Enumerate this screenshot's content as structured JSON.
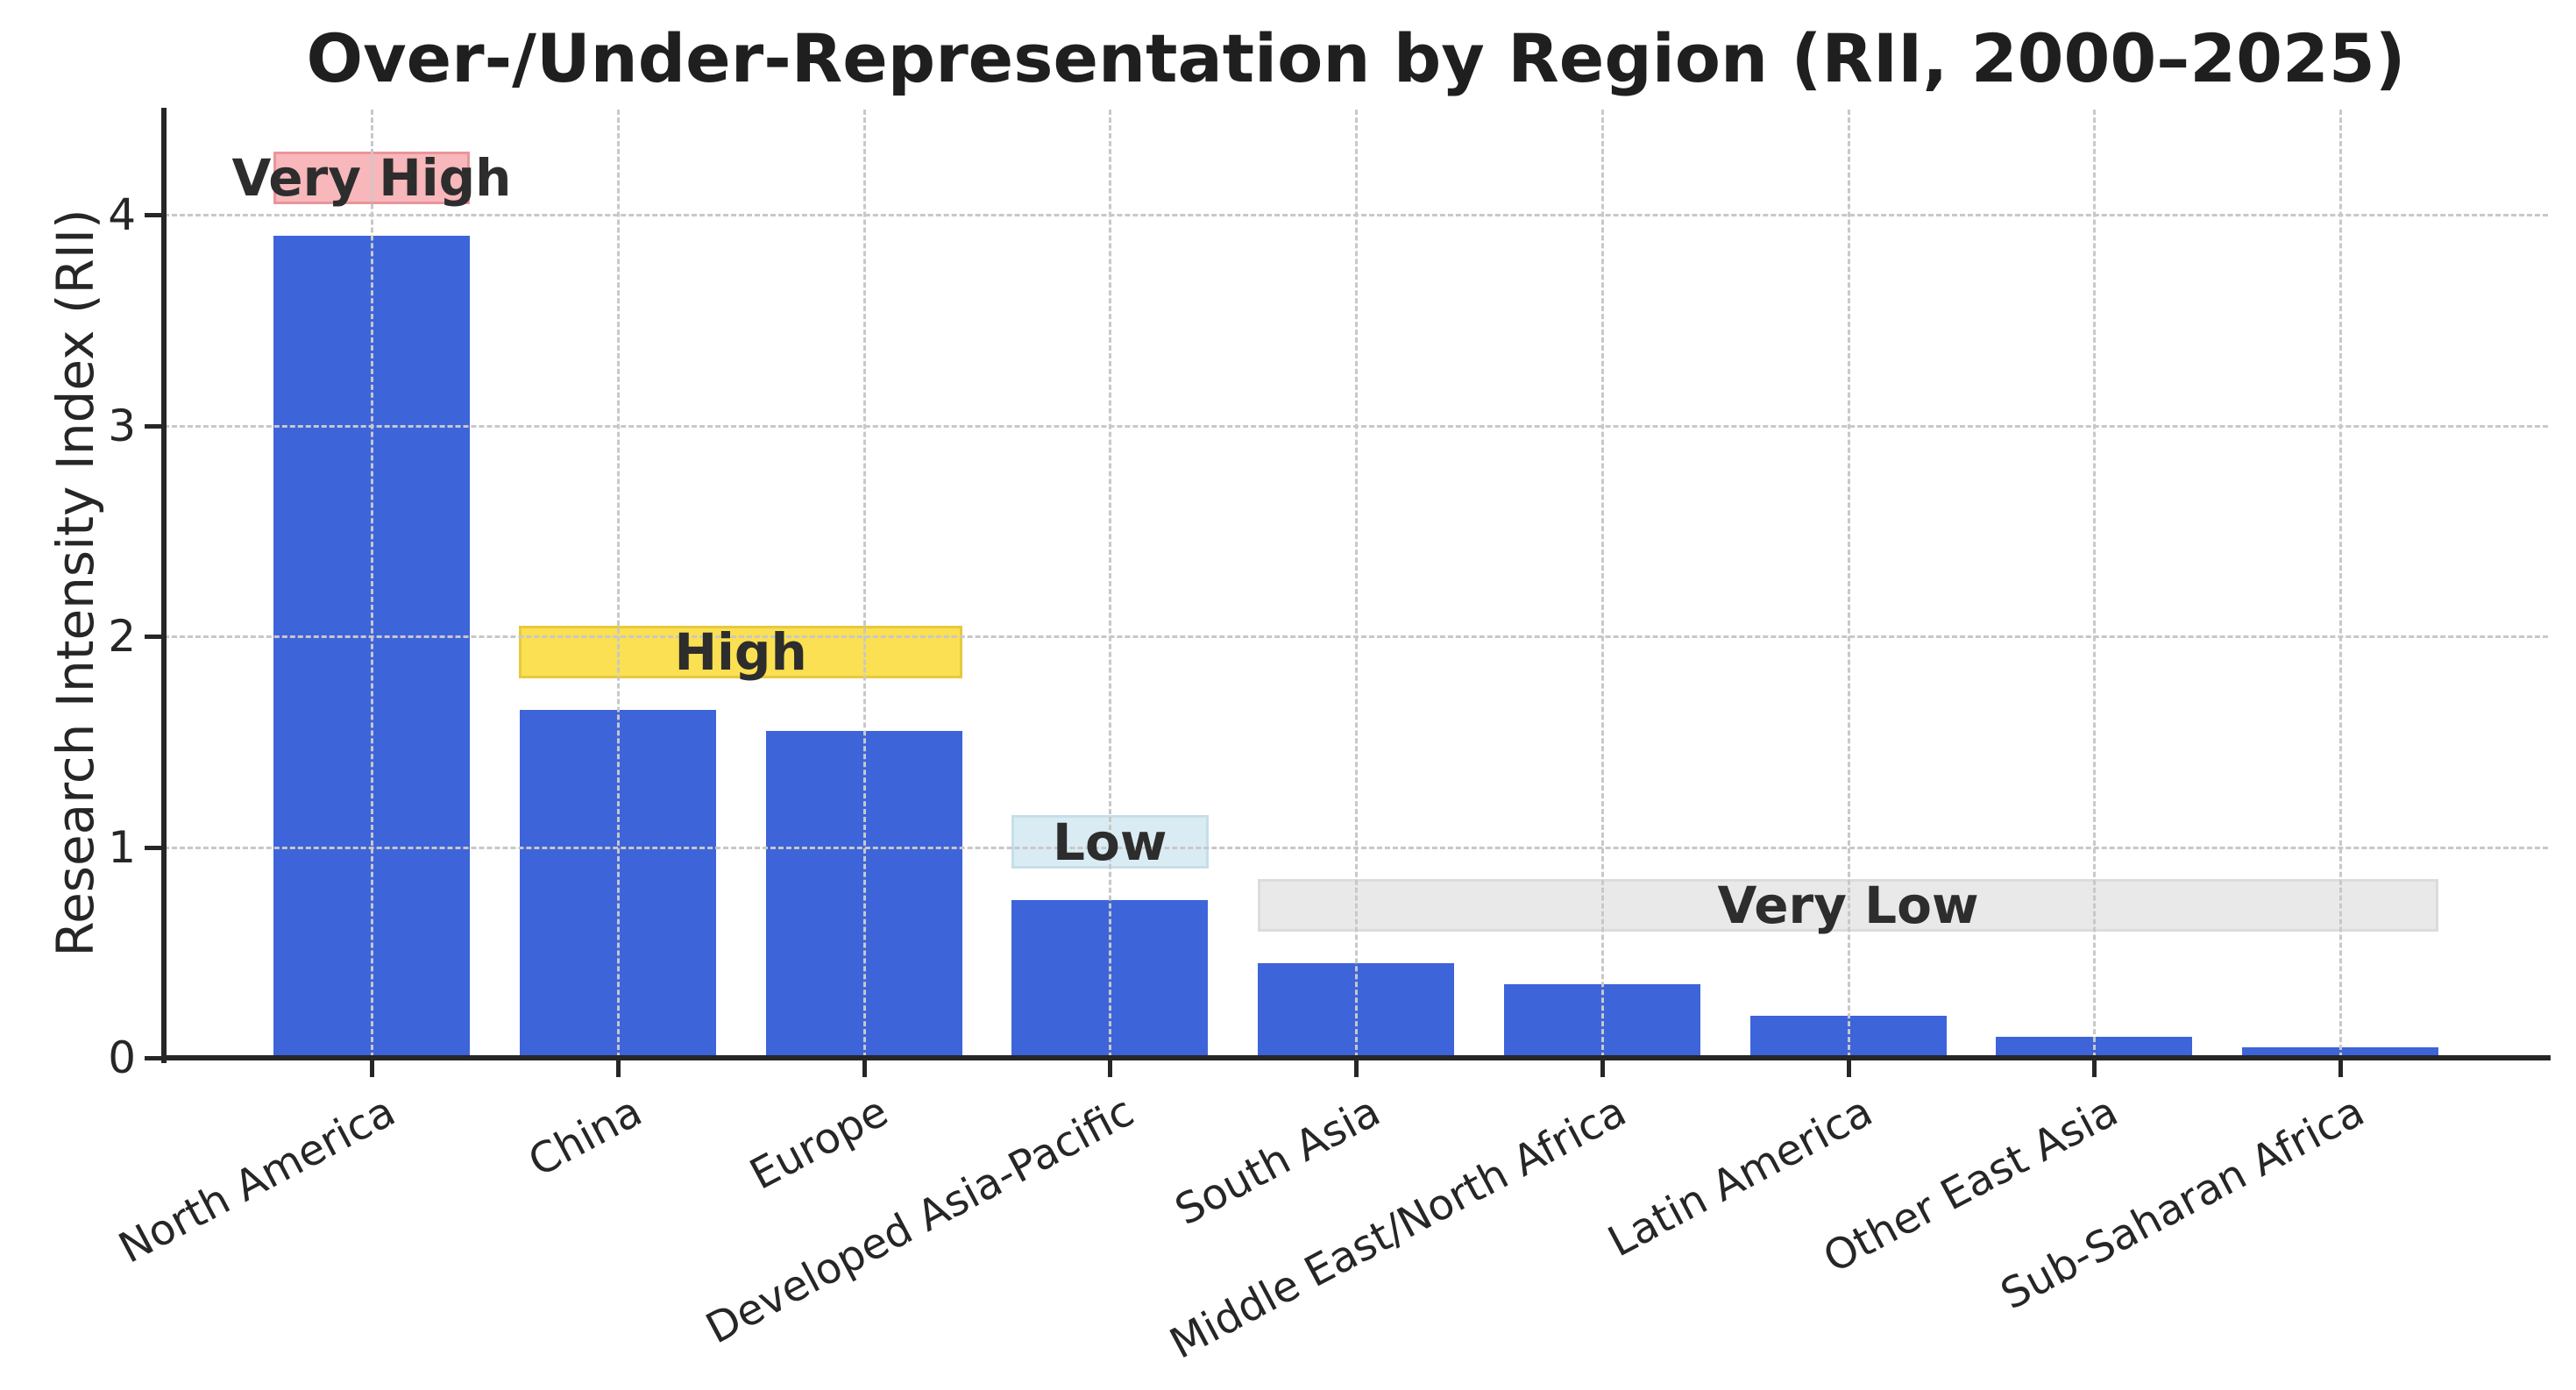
{
  "title": "Over-/Under-Representation by Region (RII, 2000–2025)",
  "chart_data": {
    "type": "bar",
    "title": "Over-/Under-Representation by Region (RII, 2000–2025)",
    "xlabel": "",
    "ylabel": "Research Intensity Index (RII)",
    "categories": [
      "North America",
      "China",
      "Europe",
      "Developed Asia-Pacific",
      "South Asia",
      "Middle East/North Africa",
      "Latin America",
      "Other East Asia",
      "Sub-Saharan Africa"
    ],
    "values": [
      3.9,
      1.65,
      1.55,
      0.75,
      0.45,
      0.35,
      0.2,
      0.1,
      0.05
    ],
    "ylim": [
      0,
      4.5
    ],
    "yticks": [
      0,
      1,
      2,
      3,
      4
    ],
    "grid": "dashed gray, horizontal at integer ticks and vertical at each category, drawn above bars",
    "legend_position": "none",
    "bar_color": "#3e64d9",
    "axis_color": "#262626",
    "grid_color": "#c8c8c8",
    "annotations": [
      {
        "label": "Very High",
        "x_start": -0.4,
        "x_end": 0.4,
        "y_start": 4.05,
        "y_end": 4.3,
        "fill": "#f7b7bb",
        "border": "#ea959b"
      },
      {
        "label": "High",
        "x_start": 0.6,
        "x_end": 2.4,
        "y_start": 1.8,
        "y_end": 2.05,
        "fill": "#fae052",
        "border": "#e6c93c"
      },
      {
        "label": "Low",
        "x_start": 2.6,
        "x_end": 3.4,
        "y_start": 0.9,
        "y_end": 1.15,
        "fill": "#daecf3",
        "border": "#c5dfe9"
      },
      {
        "label": "Very Low",
        "x_start": 3.6,
        "x_end": 8.4,
        "y_start": 0.6,
        "y_end": 0.85,
        "fill": "#e9e9e9",
        "border": "#dcdcdc"
      }
    ]
  }
}
